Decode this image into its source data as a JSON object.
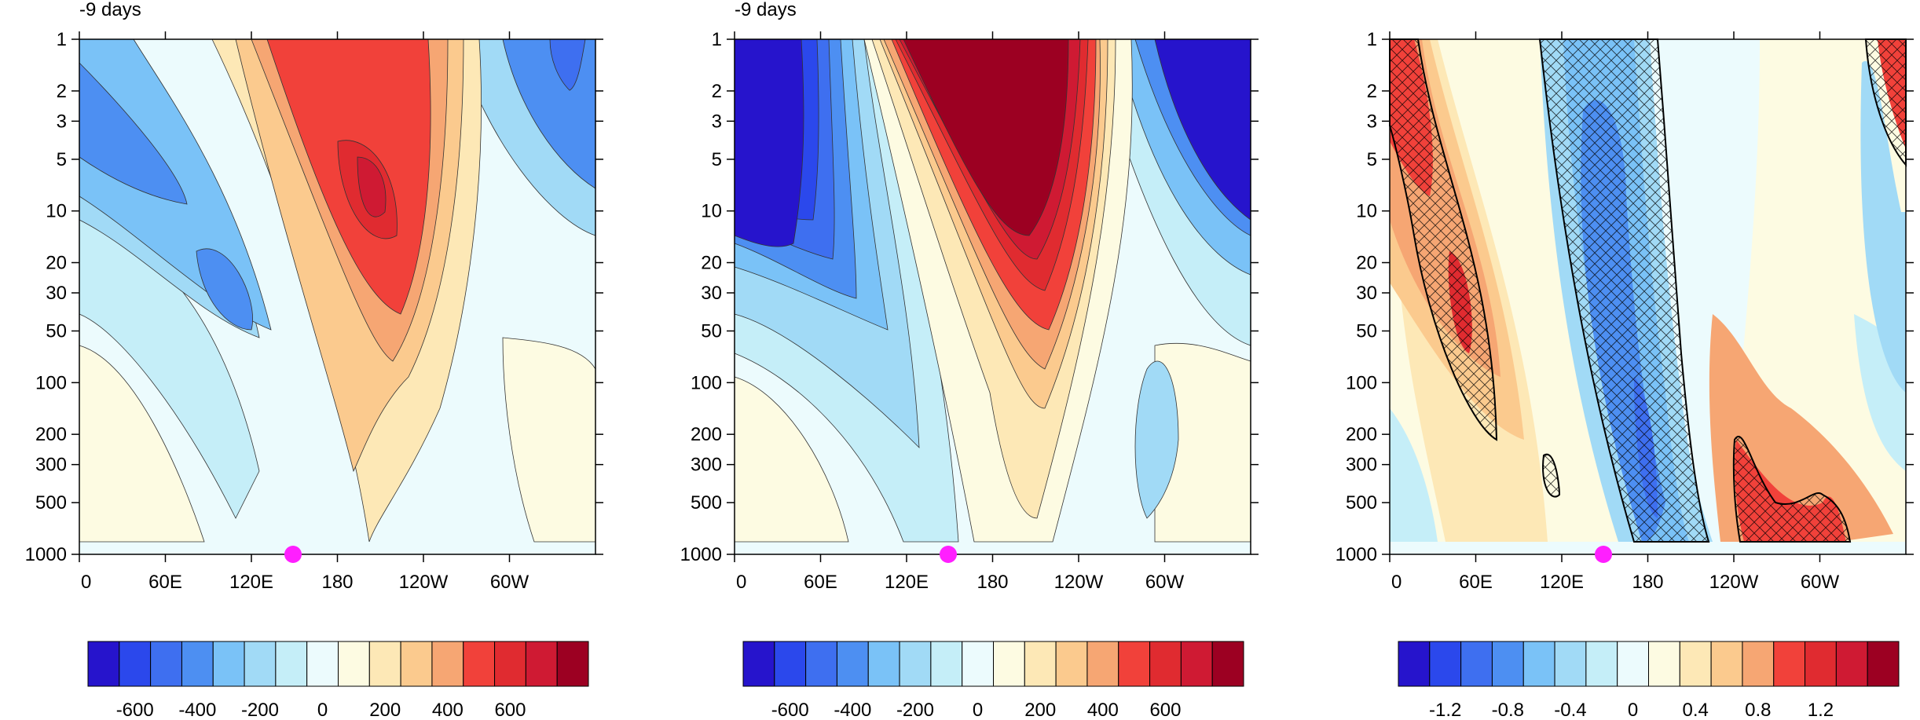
{
  "chart_data": [
    {
      "type": "heatmap",
      "panel": "left",
      "title": "-9 days",
      "x_ticklabels": [
        "0",
        "60E",
        "120E",
        "180",
        "120W",
        "60W"
      ],
      "y_ticklabels": [
        "1",
        "2",
        "3",
        "5",
        "10",
        "20",
        "30",
        "50",
        "100",
        "200",
        "300",
        "500",
        "1000"
      ],
      "xlim": [
        0,
        360
      ],
      "ylim": [
        1000,
        1
      ],
      "y_scale": "log",
      "colorbar": {
        "ticklabels": [
          "-600",
          "-400",
          "-200",
          "0",
          "200",
          "400",
          "600"
        ],
        "ticks": [
          -600,
          -400,
          -200,
          0,
          200,
          400,
          600
        ],
        "levels": [
          -650,
          -550,
          -450,
          -350,
          -250,
          -150,
          -50,
          50,
          150,
          250,
          350,
          450,
          550,
          650
        ],
        "colors": [
          "#2614cc",
          "#2b48ec",
          "#3e6ff0",
          "#4d8ff2",
          "#7ac2f7",
          "#a1daf6",
          "#c5eef8",
          "#ecfbfd",
          "#fdfbe2",
          "#fde8b6",
          "#fbca8e",
          "#f6a673",
          "#f1413a",
          "#e02b30",
          "#cf1a33",
          "#9c0022"
        ]
      },
      "field_features": [
        {
          "lon": 205,
          "p": 8,
          "value": 560
        },
        {
          "lon": 200,
          "p": 40,
          "value": 450
        },
        {
          "lon": 40,
          "p": 6,
          "value": -420
        },
        {
          "lon": 105,
          "p": 30,
          "value": -480
        },
        {
          "lon": 340,
          "p": 3,
          "value": -420
        },
        {
          "lon": 20,
          "p": 300,
          "value": 40
        }
      ],
      "marker": {
        "lon": 148,
        "p": 1000,
        "color": "#ff1fff"
      }
    },
    {
      "type": "heatmap",
      "panel": "middle",
      "title": "-9 days",
      "x_ticklabels": [
        "0",
        "60E",
        "120E",
        "180",
        "120W",
        "60W"
      ],
      "y_ticklabels": [
        "1",
        "2",
        "3",
        "5",
        "10",
        "20",
        "30",
        "50",
        "100",
        "200",
        "300",
        "500",
        "1000"
      ],
      "xlim": [
        0,
        360
      ],
      "ylim": [
        1000,
        1
      ],
      "y_scale": "log",
      "colorbar": {
        "ticklabels": [
          "-600",
          "-400",
          "-200",
          "0",
          "200",
          "400",
          "600"
        ],
        "ticks": [
          -600,
          -400,
          -200,
          0,
          200,
          400,
          600
        ],
        "levels": [
          -650,
          -550,
          -450,
          -350,
          -250,
          -150,
          -50,
          50,
          150,
          250,
          350,
          450,
          550,
          650
        ],
        "colors": [
          "#2614cc",
          "#2b48ec",
          "#3e6ff0",
          "#4d8ff2",
          "#7ac2f7",
          "#a1daf6",
          "#c5eef8",
          "#ecfbfd",
          "#fdfbe2",
          "#fde8b6",
          "#fbca8e",
          "#f6a673",
          "#f1413a",
          "#e02b30",
          "#cf1a33",
          "#9c0022"
        ]
      },
      "field_features": [
        {
          "lon": 200,
          "p": 5,
          "value": 900
        },
        {
          "lon": 30,
          "p": 5,
          "value": -800
        },
        {
          "lon": 340,
          "p": 3,
          "value": -750
        },
        {
          "lon": 10,
          "p": 300,
          "value": 60
        },
        {
          "lon": 340,
          "p": 300,
          "value": 60
        }
      ],
      "marker": {
        "lon": 148,
        "p": 1000,
        "color": "#ff1fff"
      }
    },
    {
      "type": "heatmap",
      "panel": "right",
      "title": "",
      "x_ticklabels": [
        "0",
        "60E",
        "120E",
        "180",
        "120W",
        "60W"
      ],
      "y_ticklabels": [
        "1",
        "2",
        "3",
        "5",
        "10",
        "20",
        "30",
        "50",
        "100",
        "200",
        "300",
        "500",
        "1000"
      ],
      "xlim": [
        0,
        360
      ],
      "ylim": [
        1000,
        1
      ],
      "y_scale": "log",
      "hatched": "significant regions outlined in black",
      "colorbar": {
        "ticklabels": [
          "-1.2",
          "-0.8",
          "-0.4",
          "0",
          "0.4",
          "0.8",
          "1.2"
        ],
        "ticks": [
          -1.2,
          -0.8,
          -0.4,
          0,
          0.4,
          0.8,
          1.2
        ],
        "levels": [
          -1.3,
          -1.1,
          -0.9,
          -0.7,
          -0.5,
          -0.3,
          -0.1,
          0.1,
          0.3,
          0.5,
          0.7,
          0.9,
          1.1,
          1.3
        ],
        "colors": [
          "#2614cc",
          "#2b48ec",
          "#3e6ff0",
          "#4d8ff2",
          "#7ac2f7",
          "#a1daf6",
          "#c5eef8",
          "#ecfbfd",
          "#fdfbe2",
          "#fde8b6",
          "#fbca8e",
          "#f6a673",
          "#f1413a",
          "#e02b30",
          "#cf1a33",
          "#9c0022"
        ]
      },
      "field_features": [
        {
          "lon": 190,
          "p": 10,
          "value": -0.9
        },
        {
          "lon": 15,
          "p": 3,
          "value": 1.0
        },
        {
          "lon": 45,
          "p": 30,
          "value": 1.0
        },
        {
          "lon": 255,
          "p": 800,
          "value": 1.1
        },
        {
          "lon": 355,
          "p": 2,
          "value": 1.0
        }
      ],
      "marker": {
        "lon": 148,
        "p": 1000,
        "color": "#ff1fff"
      }
    }
  ]
}
